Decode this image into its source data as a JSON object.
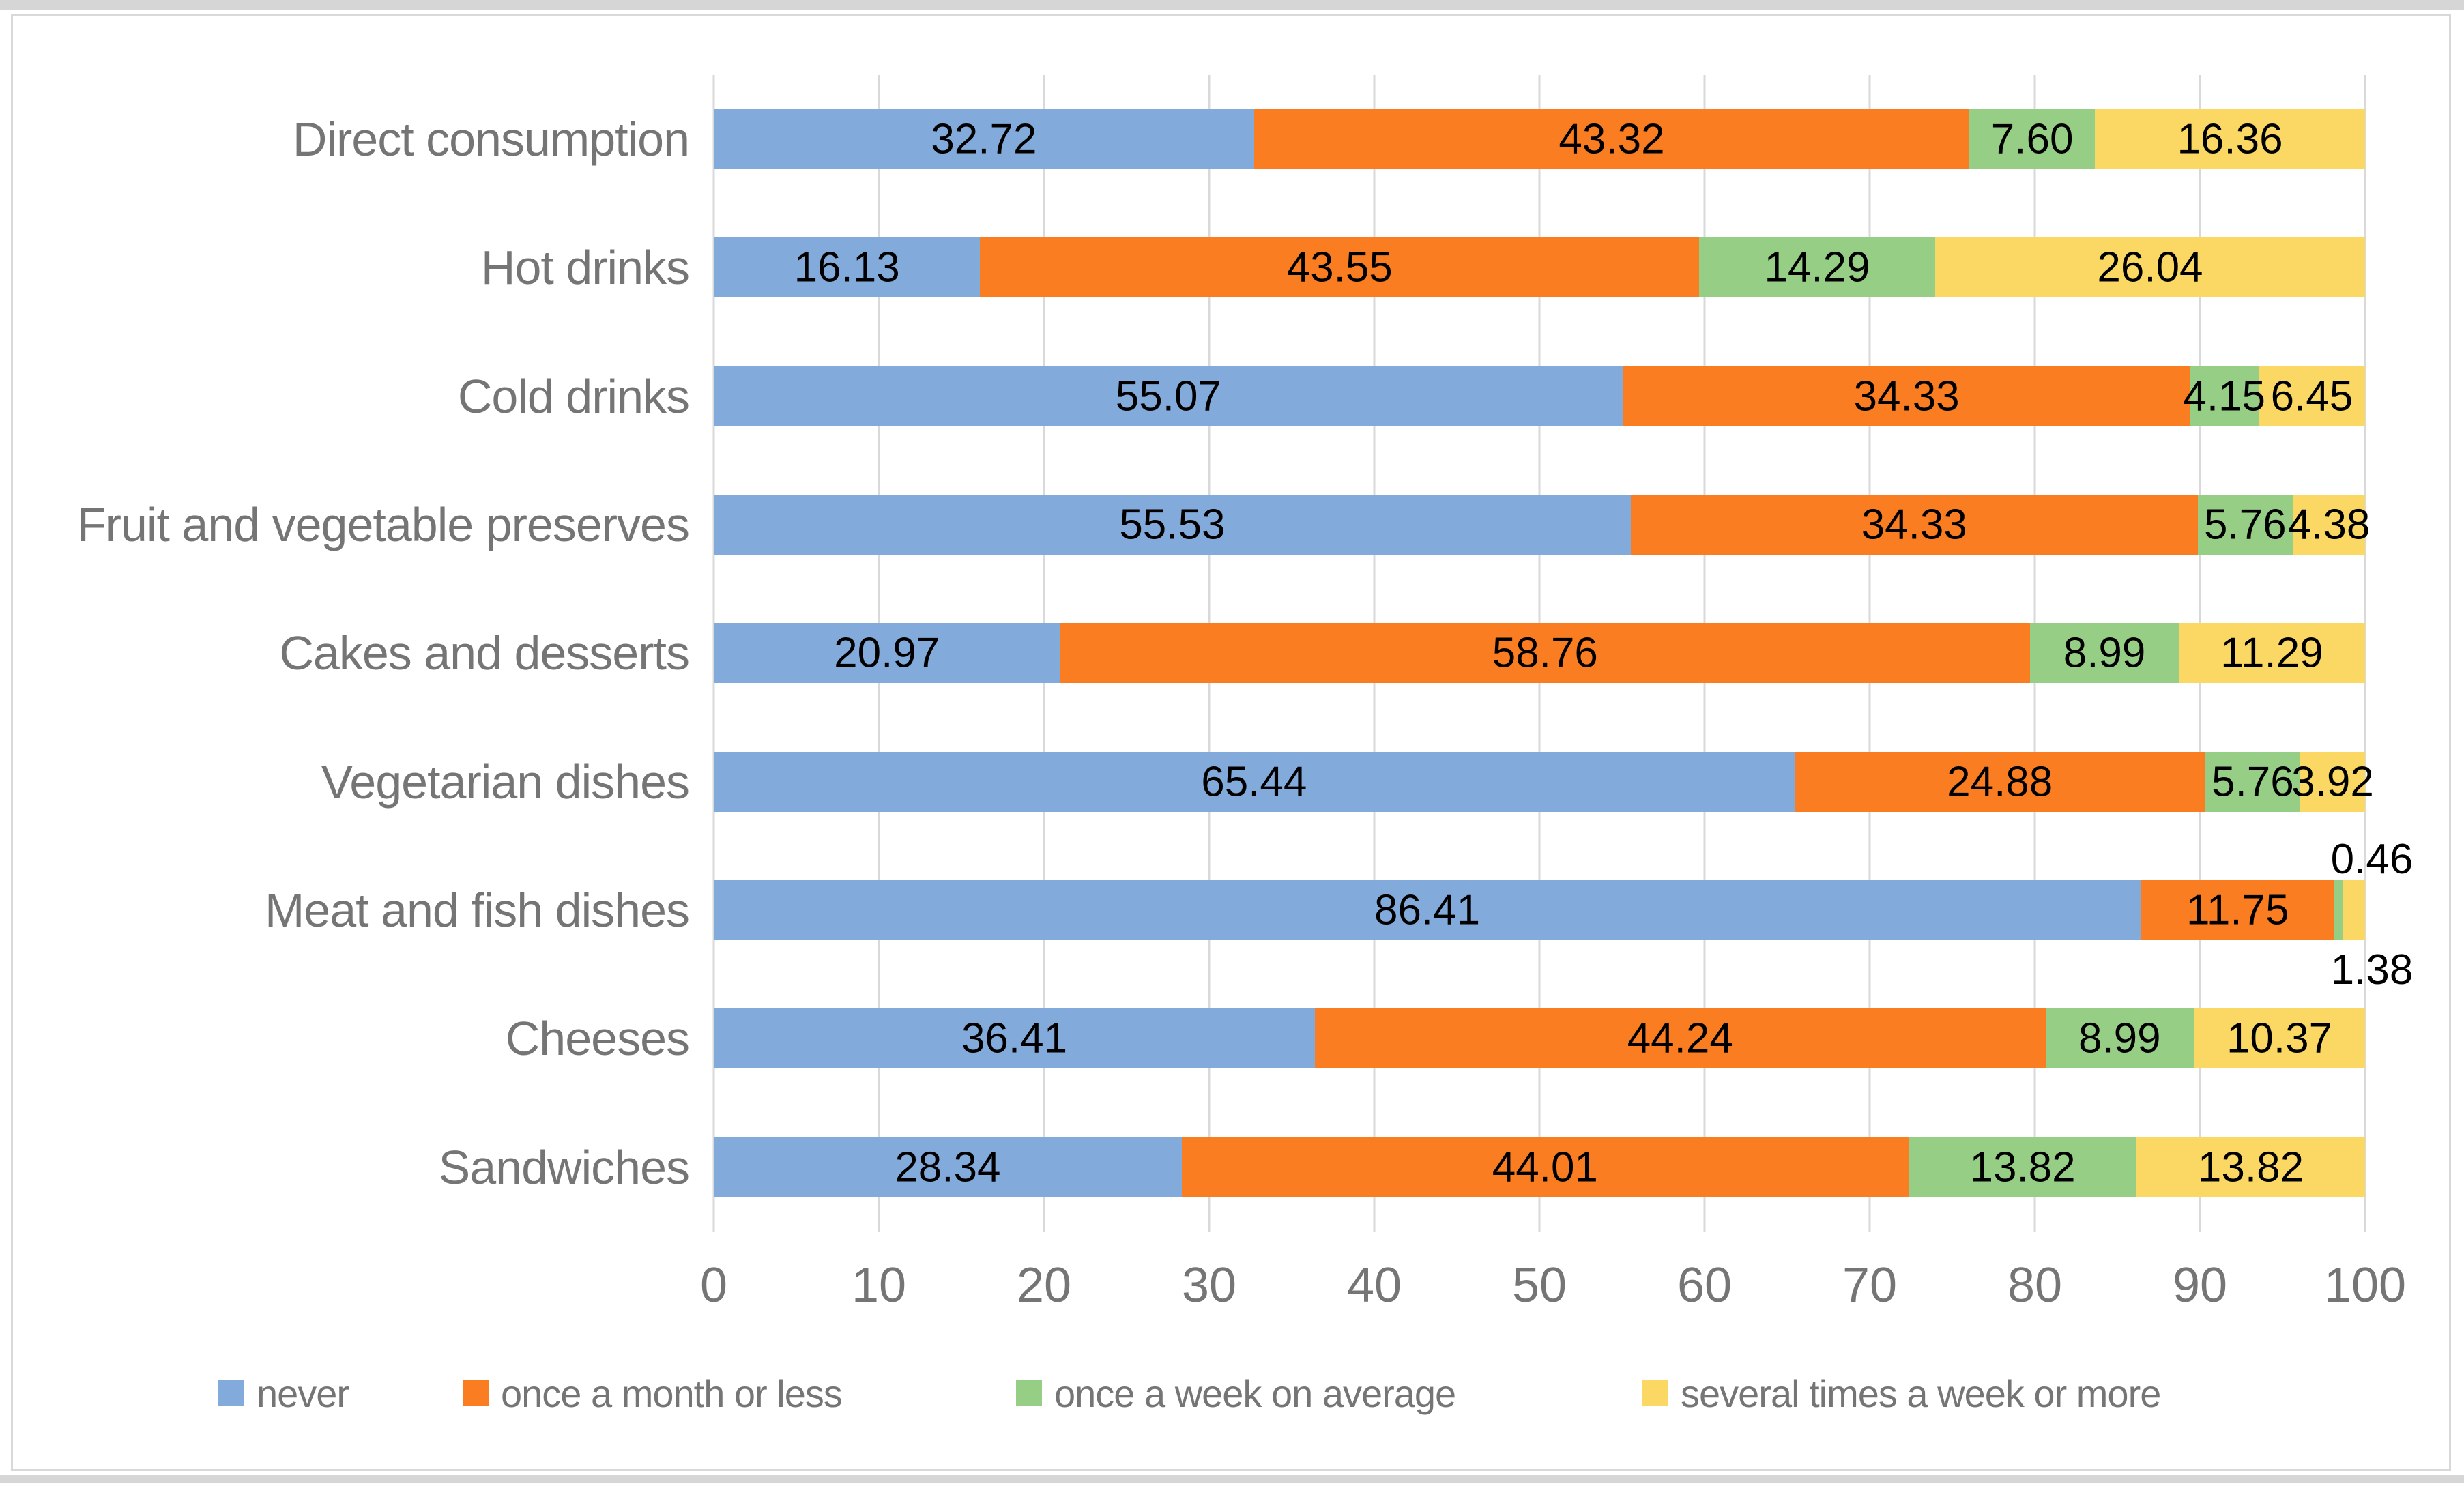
{
  "page": {
    "background": "#FFFFFF",
    "frame_border_color": "#D9D9D9"
  },
  "chart_data": {
    "type": "bar",
    "orientation": "horizontal",
    "stacked": true,
    "title": "",
    "xlabel": "",
    "ylabel": "",
    "xlim": [
      0,
      100
    ],
    "x_ticks": [
      0,
      10,
      20,
      30,
      40,
      50,
      60,
      70,
      80,
      90,
      100
    ],
    "grid": true,
    "gridline_color": "#D9D9D9",
    "axis_text_color": "#757575",
    "data_label_color": "#000000",
    "value_format_decimals": 2,
    "legend_position": "bottom",
    "categories": [
      "Direct consumption",
      "Hot drinks",
      "Cold drinks",
      "Fruit and vegetable preserves",
      "Cakes and desserts",
      "Vegetarian dishes",
      "Meat and fish dishes",
      "Cheeses",
      "Sandwiches"
    ],
    "series": [
      {
        "name": "never",
        "color": "#82AADB",
        "values": [
          32.72,
          16.13,
          55.07,
          55.53,
          20.97,
          65.44,
          86.41,
          36.41,
          28.34
        ]
      },
      {
        "name": "once a month or less",
        "color": "#FA7D22",
        "values": [
          43.32,
          43.55,
          34.33,
          34.33,
          58.76,
          24.88,
          11.75,
          44.24,
          44.01
        ]
      },
      {
        "name": "once a week on average",
        "color": "#97CE86",
        "values": [
          7.6,
          14.29,
          4.15,
          5.76,
          8.99,
          5.76,
          0.46,
          8.99,
          13.82
        ]
      },
      {
        "name": "several times a week or more",
        "color": "#FBD863",
        "values": [
          16.36,
          26.04,
          6.45,
          4.38,
          11.29,
          3.92,
          1.38,
          10.37,
          13.82
        ]
      }
    ],
    "outside_labels": [
      {
        "category_index": 6,
        "series_index": 2,
        "position": "above"
      },
      {
        "category_index": 6,
        "series_index": 3,
        "position": "below"
      }
    ]
  }
}
